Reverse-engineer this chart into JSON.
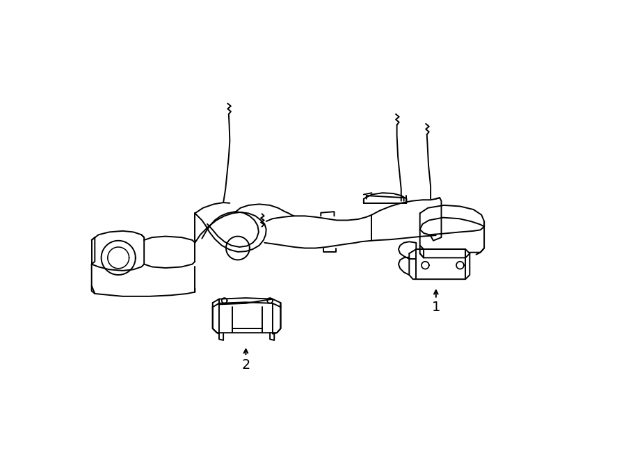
{
  "background_color": "#ffffff",
  "line_color": "#000000",
  "line_width": 1.4,
  "label_1_text": "1",
  "label_2_text": "2",
  "fig_width": 9.0,
  "fig_height": 6.61,
  "dpi": 100
}
